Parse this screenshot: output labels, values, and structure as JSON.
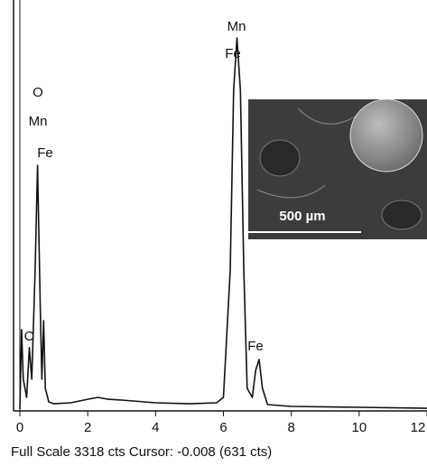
{
  "chart_data": {
    "type": "line",
    "x": [
      0,
      0.05,
      0.1,
      0.2,
      0.28,
      0.35,
      0.45,
      0.52,
      0.6,
      0.65,
      0.7,
      0.75,
      0.85,
      1.0,
      1.5,
      2.0,
      2.3,
      2.6,
      3.0,
      4.0,
      5.0,
      5.8,
      6.0,
      6.2,
      6.3,
      6.4,
      6.5,
      6.6,
      6.7,
      6.85,
      6.95,
      7.05,
      7.15,
      7.3,
      8,
      10,
      12
    ],
    "series": [
      {
        "color": "#111111",
        "values": [
          0,
          652,
          245,
          96,
          504,
          245,
          1133,
          2000,
          837,
          245,
          726,
          170,
          59,
          44,
          52,
          81,
          96,
          81,
          74,
          52,
          44,
          52,
          96,
          1133,
          2615,
          3044,
          2615,
          1133,
          170,
          96,
          318,
          407,
          170,
          37,
          22,
          15,
          7
        ]
      }
    ],
    "xlim": [
      -0.2,
      12
    ],
    "xticks": [
      0,
      2,
      4,
      6,
      8,
      10,
      12
    ],
    "ylim": [
      0,
      3318
    ],
    "annotations": [
      "Mn",
      "Fe",
      "O",
      "Mn",
      "Fe",
      "C",
      "Fe"
    ],
    "footer": "Full Scale 3318 cts Cursor: -0.008  (631 cts)",
    "inset_scale_bar": "500 µm"
  }
}
